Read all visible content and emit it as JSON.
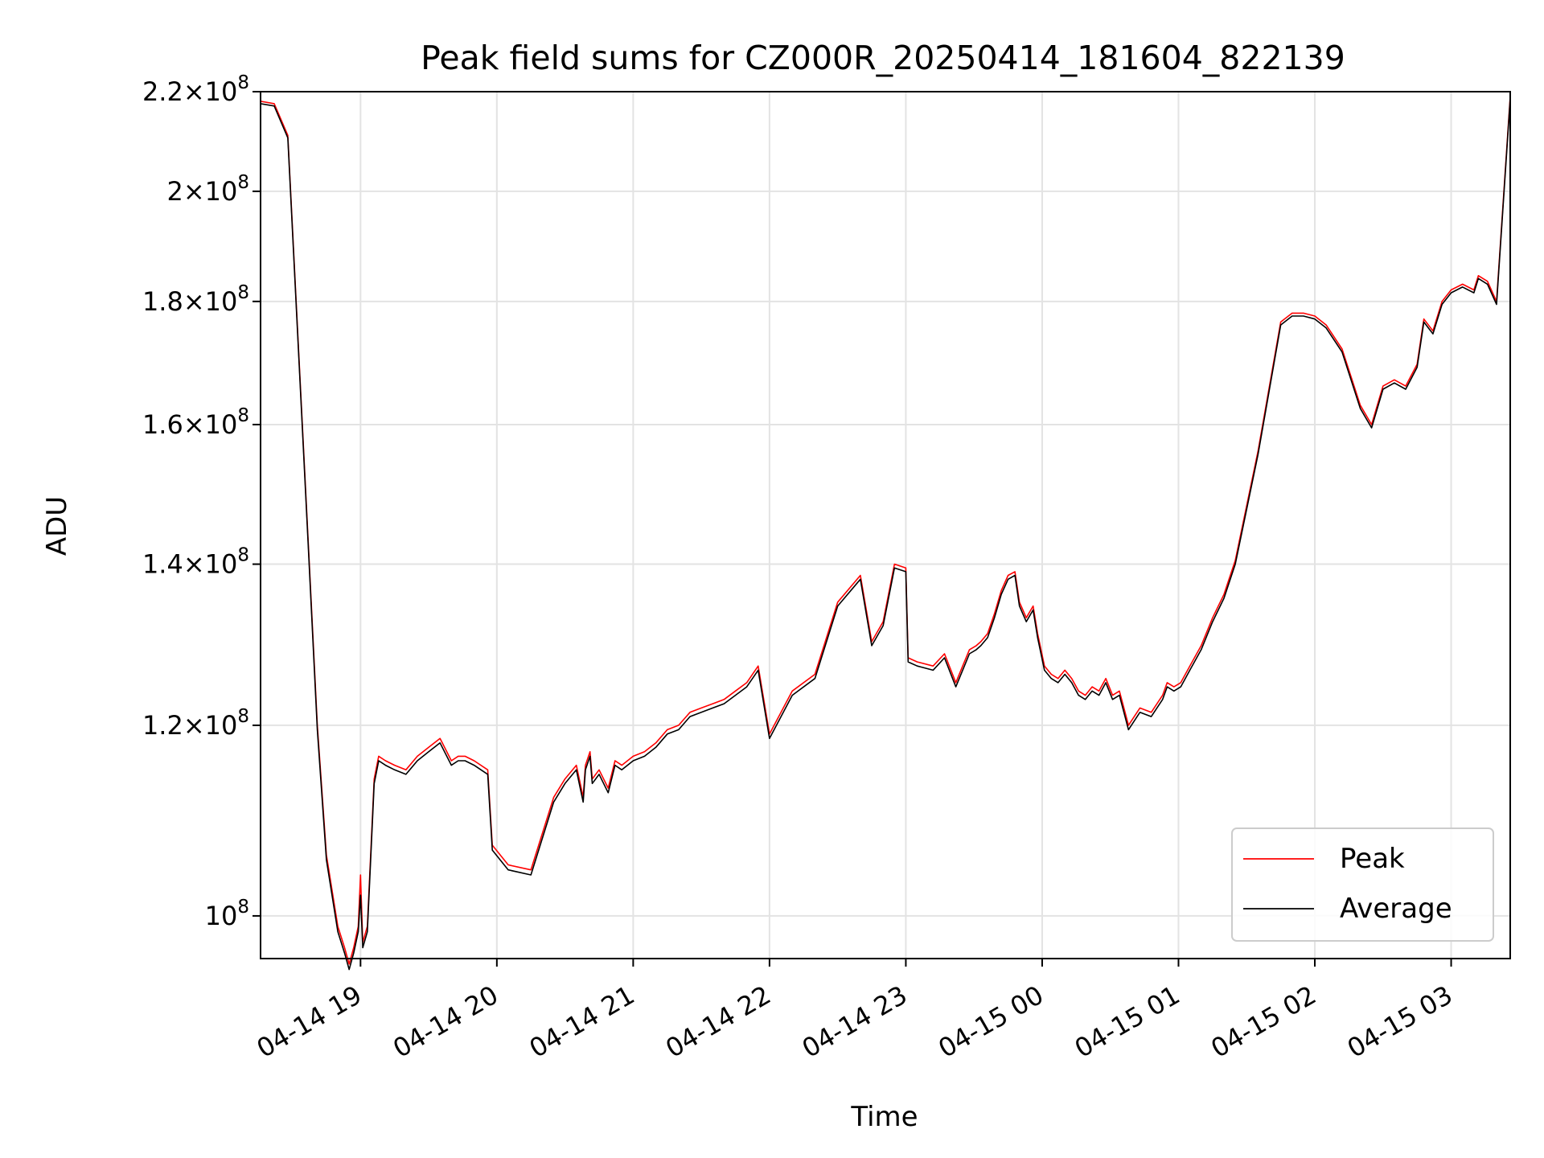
{
  "chart_data": {
    "type": "line",
    "title": "Peak field sums for CZ000R_20250414_181604_822139",
    "xlabel": "Time",
    "ylabel": "ADU",
    "yscale": "log",
    "xlim": [
      "2025-04-14 18:16",
      "2025-04-15 03:26"
    ],
    "ylim": [
      96000000.0,
      220000000.0
    ],
    "grid": true,
    "legend_position": "lower right",
    "x_ticks": [
      {
        "value": "2025-04-14 19:00",
        "label": "04-14 19"
      },
      {
        "value": "2025-04-14 20:00",
        "label": "04-14 20"
      },
      {
        "value": "2025-04-14 21:00",
        "label": "04-14 21"
      },
      {
        "value": "2025-04-14 22:00",
        "label": "04-14 22"
      },
      {
        "value": "2025-04-14 23:00",
        "label": "04-14 23"
      },
      {
        "value": "2025-04-15 00:00",
        "label": "04-15 00"
      },
      {
        "value": "2025-04-15 01:00",
        "label": "04-15 01"
      },
      {
        "value": "2025-04-15 02:00",
        "label": "04-15 02"
      },
      {
        "value": "2025-04-15 03:00",
        "label": "04-15 03"
      }
    ],
    "y_ticks": [
      {
        "value": 100000000,
        "mantissa": "",
        "exp": "8"
      },
      {
        "value": 120000000,
        "mantissa": "1.2",
        "exp": "8"
      },
      {
        "value": 140000000,
        "mantissa": "1.4",
        "exp": "8"
      },
      {
        "value": 160000000,
        "mantissa": "1.6",
        "exp": "8"
      },
      {
        "value": 180000000,
        "mantissa": "1.8",
        "exp": "8"
      },
      {
        "value": 200000000,
        "mantissa": "2",
        "exp": "8"
      },
      {
        "value": 220000000,
        "mantissa": "2.2",
        "exp": "8"
      }
    ],
    "series": [
      {
        "name": "Peak",
        "color": "#ff0000",
        "x": [
          "2025-04-14 18:16",
          "2025-04-14 18:22",
          "2025-04-14 18:28",
          "2025-04-14 18:33",
          "2025-04-14 18:37",
          "2025-04-14 18:41",
          "2025-04-14 18:45",
          "2025-04-14 18:50",
          "2025-04-14 18:53",
          "2025-04-14 18:55",
          "2025-04-14 18:57",
          "2025-04-14 18:59",
          "2025-04-14 19:00",
          "2025-04-14 19:01",
          "2025-04-14 19:03",
          "2025-04-14 19:06",
          "2025-04-14 19:08",
          "2025-04-14 19:11",
          "2025-04-14 19:15",
          "2025-04-14 19:20",
          "2025-04-14 19:25",
          "2025-04-14 19:30",
          "2025-04-14 19:35",
          "2025-04-14 19:40",
          "2025-04-14 19:43",
          "2025-04-14 19:46",
          "2025-04-14 19:50",
          "2025-04-14 19:56",
          "2025-04-14 19:58",
          "2025-04-14 20:05",
          "2025-04-14 20:15",
          "2025-04-14 20:25",
          "2025-04-14 20:30",
          "2025-04-14 20:35",
          "2025-04-14 20:38",
          "2025-04-14 20:39",
          "2025-04-14 20:41",
          "2025-04-14 20:42",
          "2025-04-14 20:45",
          "2025-04-14 20:49",
          "2025-04-14 20:52",
          "2025-04-14 20:55",
          "2025-04-14 21:00",
          "2025-04-14 21:05",
          "2025-04-14 21:10",
          "2025-04-14 21:15",
          "2025-04-14 21:20",
          "2025-04-14 21:25",
          "2025-04-14 21:30",
          "2025-04-14 21:35",
          "2025-04-14 21:40",
          "2025-04-14 21:45",
          "2025-04-14 21:50",
          "2025-04-14 21:55",
          "2025-04-14 22:00",
          "2025-04-14 22:10",
          "2025-04-14 22:20",
          "2025-04-14 22:30",
          "2025-04-14 22:40",
          "2025-04-14 22:45",
          "2025-04-14 22:50",
          "2025-04-14 22:55",
          "2025-04-14 23:00",
          "2025-04-14 23:01",
          "2025-04-14 23:05",
          "2025-04-14 23:12",
          "2025-04-14 23:17",
          "2025-04-14 23:22",
          "2025-04-14 23:25",
          "2025-04-14 23:28",
          "2025-04-14 23:31",
          "2025-04-14 23:33",
          "2025-04-14 23:36",
          "2025-04-14 23:39",
          "2025-04-14 23:42",
          "2025-04-14 23:45",
          "2025-04-14 23:48",
          "2025-04-14 23:50",
          "2025-04-14 23:53",
          "2025-04-14 23:56",
          "2025-04-14 23:58",
          "2025-04-15 00:01",
          "2025-04-15 00:04",
          "2025-04-15 00:07",
          "2025-04-15 00:10",
          "2025-04-15 00:13",
          "2025-04-15 00:16",
          "2025-04-15 00:19",
          "2025-04-15 00:22",
          "2025-04-15 00:25",
          "2025-04-15 00:28",
          "2025-04-15 00:31",
          "2025-04-15 00:34",
          "2025-04-15 00:38",
          "2025-04-15 00:43",
          "2025-04-15 00:48",
          "2025-04-15 00:53",
          "2025-04-15 00:55",
          "2025-04-15 00:58",
          "2025-04-15 01:01",
          "2025-04-15 01:05",
          "2025-04-15 01:10",
          "2025-04-15 01:15",
          "2025-04-15 01:20",
          "2025-04-15 01:25",
          "2025-04-15 01:35",
          "2025-04-15 01:45",
          "2025-04-15 01:50",
          "2025-04-15 01:55",
          "2025-04-15 02:00",
          "2025-04-15 02:05",
          "2025-04-15 02:12",
          "2025-04-15 02:20",
          "2025-04-15 02:25",
          "2025-04-15 02:30",
          "2025-04-15 02:35",
          "2025-04-15 02:40",
          "2025-04-15 02:45",
          "2025-04-15 02:48",
          "2025-04-15 02:52",
          "2025-04-15 02:56",
          "2025-04-15 03:00",
          "2025-04-15 03:05",
          "2025-04-15 03:10",
          "2025-04-15 03:12",
          "2025-04-15 03:16",
          "2025-04-15 03:20",
          "2025-04-15 03:26"
        ],
        "values": [
          218000000,
          217500000,
          211000000,
          170000000,
          143000000,
          120000000,
          106000000,
          99000000,
          97000000,
          95500000,
          97000000,
          99000000,
          104000000,
          97500000,
          99000000,
          114000000,
          116500000,
          116000000,
          115500000,
          115000000,
          116500000,
          117500000,
          118500000,
          116000000,
          116500000,
          116500000,
          116000000,
          115000000,
          107000000,
          105000000,
          104500000,
          112000000,
          114000000,
          115500000,
          112000000,
          115500000,
          117000000,
          114000000,
          115000000,
          113000000,
          116000000,
          115500000,
          116500000,
          117000000,
          118000000,
          119500000,
          120000000,
          121500000,
          122000000,
          122500000,
          123000000,
          124000000,
          125000000,
          127000000,
          119000000,
          124000000,
          126000000,
          135000000,
          138500000,
          130000000,
          132500000,
          140000000,
          139500000,
          128000000,
          127500000,
          127000000,
          128500000,
          125000000,
          127000000,
          129000000,
          129500000,
          130000000,
          131000000,
          133500000,
          136500000,
          138500000,
          139000000,
          135000000,
          133000000,
          134500000,
          131000000,
          127000000,
          126000000,
          125500000,
          126500000,
          125500000,
          124000000,
          123500000,
          124500000,
          124000000,
          125500000,
          123500000,
          124000000,
          120000000,
          122000000,
          121500000,
          123500000,
          125000000,
          124500000,
          125000000,
          127000000,
          129500000,
          133000000,
          136000000,
          140500000,
          156000000,
          176500000,
          178000000,
          178000000,
          177500000,
          176000000,
          172000000,
          163000000,
          160000000,
          166000000,
          167000000,
          166000000,
          169500000,
          177000000,
          175000000,
          180000000,
          182000000,
          183000000,
          182000000,
          184500000,
          183500000,
          180000000,
          219000000
        ]
      },
      {
        "name": "Average",
        "color": "#000000",
        "x": [
          "2025-04-14 18:16",
          "2025-04-14 18:22",
          "2025-04-14 18:28",
          "2025-04-14 18:33",
          "2025-04-14 18:37",
          "2025-04-14 18:41",
          "2025-04-14 18:45",
          "2025-04-14 18:50",
          "2025-04-14 18:53",
          "2025-04-14 18:55",
          "2025-04-14 18:57",
          "2025-04-14 18:59",
          "2025-04-14 19:00",
          "2025-04-14 19:01",
          "2025-04-14 19:03",
          "2025-04-14 19:06",
          "2025-04-14 19:08",
          "2025-04-14 19:11",
          "2025-04-14 19:15",
          "2025-04-14 19:20",
          "2025-04-14 19:25",
          "2025-04-14 19:30",
          "2025-04-14 19:35",
          "2025-04-14 19:40",
          "2025-04-14 19:43",
          "2025-04-14 19:46",
          "2025-04-14 19:50",
          "2025-04-14 19:56",
          "2025-04-14 19:58",
          "2025-04-14 20:05",
          "2025-04-14 20:15",
          "2025-04-14 20:25",
          "2025-04-14 20:30",
          "2025-04-14 20:35",
          "2025-04-14 20:38",
          "2025-04-14 20:39",
          "2025-04-14 20:41",
          "2025-04-14 20:42",
          "2025-04-14 20:45",
          "2025-04-14 20:49",
          "2025-04-14 20:52",
          "2025-04-14 20:55",
          "2025-04-14 21:00",
          "2025-04-14 21:05",
          "2025-04-14 21:10",
          "2025-04-14 21:15",
          "2025-04-14 21:20",
          "2025-04-14 21:25",
          "2025-04-14 21:30",
          "2025-04-14 21:35",
          "2025-04-14 21:40",
          "2025-04-14 21:45",
          "2025-04-14 21:50",
          "2025-04-14 21:55",
          "2025-04-14 22:00",
          "2025-04-14 22:10",
          "2025-04-14 22:20",
          "2025-04-14 22:30",
          "2025-04-14 22:40",
          "2025-04-14 22:45",
          "2025-04-14 22:50",
          "2025-04-14 22:55",
          "2025-04-14 23:00",
          "2025-04-14 23:01",
          "2025-04-14 23:05",
          "2025-04-14 23:12",
          "2025-04-14 23:17",
          "2025-04-14 23:22",
          "2025-04-14 23:25",
          "2025-04-14 23:28",
          "2025-04-14 23:31",
          "2025-04-14 23:33",
          "2025-04-14 23:36",
          "2025-04-14 23:39",
          "2025-04-14 23:42",
          "2025-04-14 23:45",
          "2025-04-14 23:48",
          "2025-04-14 23:50",
          "2025-04-14 23:53",
          "2025-04-14 23:56",
          "2025-04-14 23:58",
          "2025-04-15 00:01",
          "2025-04-15 00:04",
          "2025-04-15 00:07",
          "2025-04-15 00:10",
          "2025-04-15 00:13",
          "2025-04-15 00:16",
          "2025-04-15 00:19",
          "2025-04-15 00:22",
          "2025-04-15 00:25",
          "2025-04-15 00:28",
          "2025-04-15 00:31",
          "2025-04-15 00:34",
          "2025-04-15 00:38",
          "2025-04-15 00:43",
          "2025-04-15 00:48",
          "2025-04-15 00:53",
          "2025-04-15 00:55",
          "2025-04-15 00:58",
          "2025-04-15 01:01",
          "2025-04-15 01:05",
          "2025-04-15 01:10",
          "2025-04-15 01:15",
          "2025-04-15 01:20",
          "2025-04-15 01:25",
          "2025-04-15 01:35",
          "2025-04-15 01:45",
          "2025-04-15 01:50",
          "2025-04-15 01:55",
          "2025-04-15 02:00",
          "2025-04-15 02:05",
          "2025-04-15 02:12",
          "2025-04-15 02:20",
          "2025-04-15 02:25",
          "2025-04-15 02:30",
          "2025-04-15 02:35",
          "2025-04-15 02:40",
          "2025-04-15 02:45",
          "2025-04-15 02:48",
          "2025-04-15 02:52",
          "2025-04-15 02:56",
          "2025-04-15 03:00",
          "2025-04-15 03:05",
          "2025-04-15 03:10",
          "2025-04-15 03:12",
          "2025-04-15 03:16",
          "2025-04-15 03:20",
          "2025-04-15 03:26"
        ],
        "values": [
          217500000,
          217000000,
          210500000,
          169500000,
          142500000,
          119500000,
          105500000,
          98500000,
          96500000,
          95000000,
          96500000,
          98500000,
          102000000,
          97000000,
          98500000,
          113500000,
          116000000,
          115500000,
          115000000,
          114500000,
          116000000,
          117000000,
          118000000,
          115500000,
          116000000,
          116000000,
          115500000,
          114500000,
          106500000,
          104500000,
          104000000,
          111500000,
          113500000,
          115000000,
          111500000,
          115000000,
          116500000,
          113500000,
          114500000,
          112500000,
          115500000,
          115000000,
          116000000,
          116500000,
          117500000,
          119000000,
          119500000,
          121000000,
          121500000,
          122000000,
          122500000,
          123500000,
          124500000,
          126500000,
          118500000,
          123500000,
          125500000,
          134500000,
          138000000,
          129500000,
          132000000,
          139500000,
          139000000,
          127500000,
          127000000,
          126500000,
          128000000,
          124500000,
          126500000,
          128500000,
          129000000,
          129500000,
          130500000,
          133000000,
          136000000,
          138000000,
          138500000,
          134500000,
          132500000,
          134000000,
          130500000,
          126500000,
          125500000,
          125000000,
          126000000,
          125000000,
          123500000,
          123000000,
          124000000,
          123500000,
          125000000,
          123000000,
          123500000,
          119500000,
          121500000,
          121000000,
          123000000,
          124500000,
          124000000,
          124500000,
          126500000,
          129000000,
          132500000,
          135500000,
          140000000,
          155500000,
          176000000,
          177500000,
          177500000,
          177000000,
          175500000,
          171500000,
          162500000,
          159500000,
          165500000,
          166500000,
          165500000,
          169000000,
          176500000,
          174500000,
          179500000,
          181500000,
          182500000,
          181500000,
          184000000,
          183000000,
          179500000,
          218500000
        ]
      }
    ]
  }
}
